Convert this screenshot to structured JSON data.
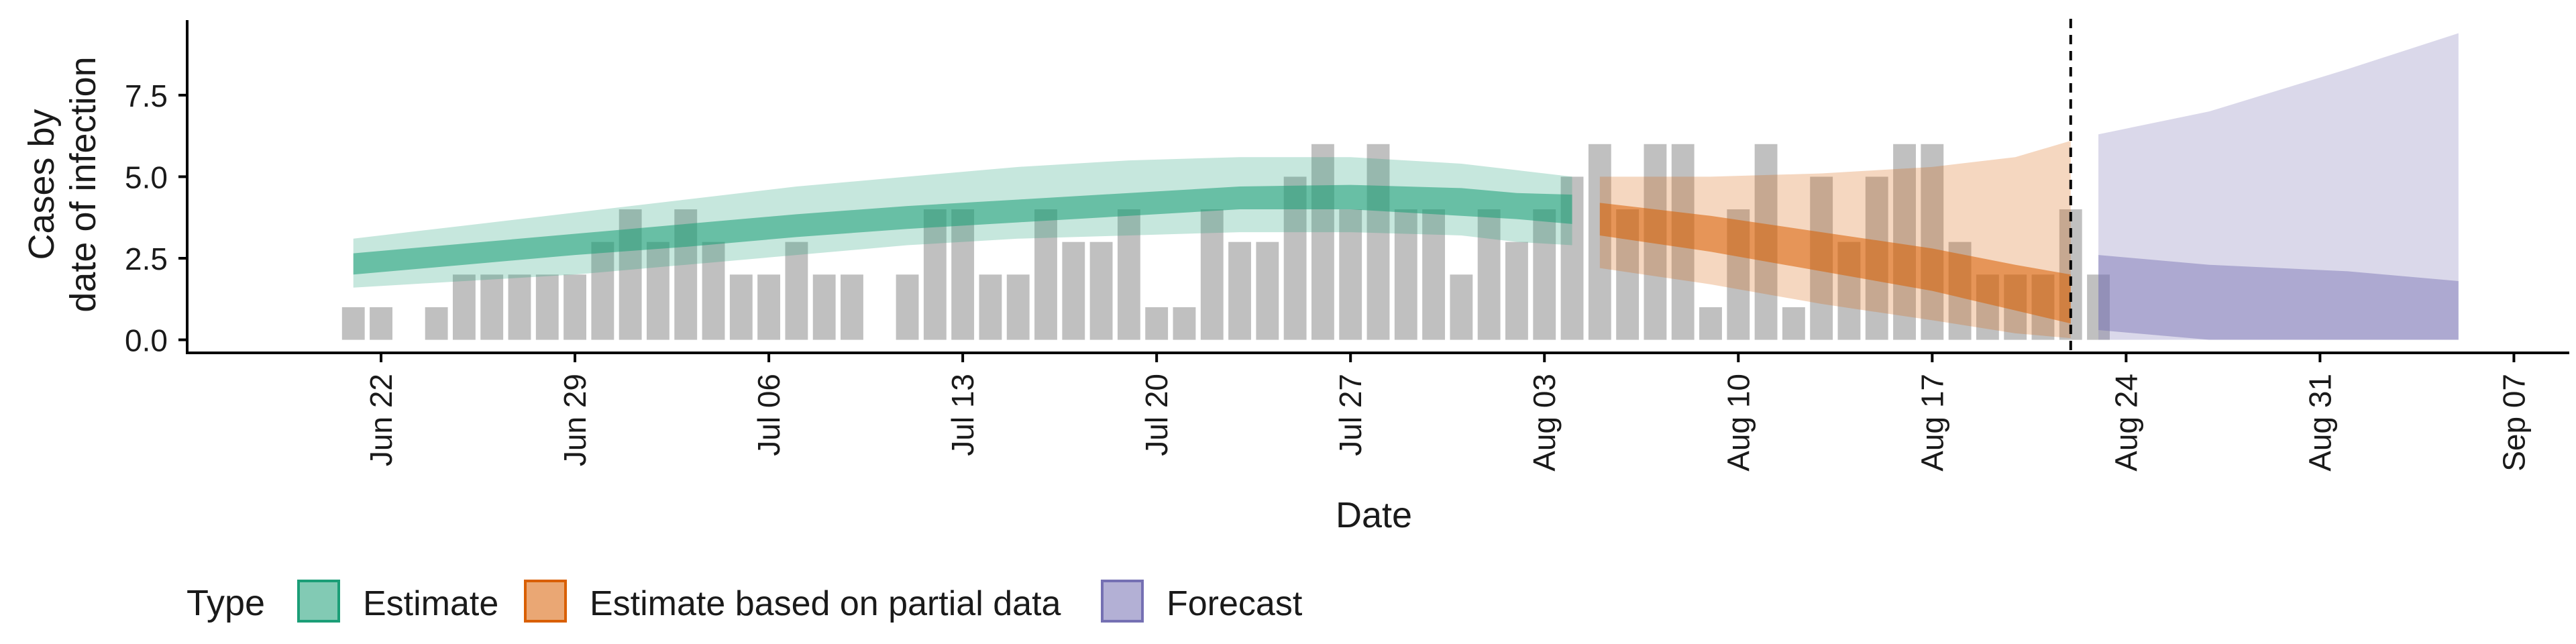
{
  "chart_data": {
    "type": "bar",
    "xlabel": "Date",
    "ylabel": [
      "Cases by",
      "date of infection"
    ],
    "ylim": [
      -0.4,
      9.8
    ],
    "yticks": [
      0.0,
      2.5,
      5.0,
      7.5
    ],
    "ytick_labels": [
      "0.0",
      "2.5",
      "5.0",
      "7.5"
    ],
    "x_range": [
      "2024-06-15",
      "2024-09-09"
    ],
    "xtick_dates": [
      "2024-06-22",
      "2024-06-29",
      "2024-07-06",
      "2024-07-13",
      "2024-07-20",
      "2024-07-27",
      "2024-08-03",
      "2024-08-10",
      "2024-08-17",
      "2024-08-24",
      "2024-08-31",
      "2024-09-07"
    ],
    "xtick_labels": [
      "Jun 22",
      "Jun 29",
      "Jul 06",
      "Jul 13",
      "Jul 20",
      "Jul 27",
      "Aug 03",
      "Aug 10",
      "Aug 17",
      "Aug 24",
      "Aug 31",
      "Sep 07"
    ],
    "vline_date": "2024-08-22",
    "bars": {
      "start_date": "2024-06-21",
      "values": [
        1,
        1,
        0,
        1,
        2,
        2,
        2,
        2,
        2,
        3,
        4,
        3,
        4,
        3,
        2,
        2,
        3,
        2,
        2,
        0,
        2,
        4,
        4,
        2,
        2,
        4,
        3,
        3,
        4,
        1,
        1,
        4,
        3,
        3,
        5,
        6,
        4,
        6,
        4,
        4,
        2,
        4,
        3,
        4,
        5,
        6,
        4,
        6,
        6,
        1,
        4,
        6,
        1,
        5,
        3,
        5,
        6,
        6,
        3,
        2,
        2,
        2,
        4,
        2
      ]
    },
    "series": [
      {
        "name": "Estimate",
        "color": "#1b9e77",
        "start_date": "2024-06-21",
        "end_date": "2024-08-04",
        "dates": [
          "2024-06-21",
          "2024-06-25",
          "2024-06-29",
          "2024-07-03",
          "2024-07-07",
          "2024-07-11",
          "2024-07-15",
          "2024-07-19",
          "2024-07-23",
          "2024-07-27",
          "2024-07-31",
          "2024-08-02",
          "2024-08-04"
        ],
        "median": [
          2.3,
          2.6,
          2.9,
          3.2,
          3.5,
          3.75,
          3.95,
          4.15,
          4.35,
          4.4,
          4.25,
          4.1,
          4.0
        ],
        "lower50": [
          2.0,
          2.3,
          2.6,
          2.85,
          3.15,
          3.4,
          3.6,
          3.8,
          4.0,
          4.0,
          3.8,
          3.7,
          3.55
        ],
        "upper50": [
          2.65,
          2.95,
          3.25,
          3.55,
          3.85,
          4.1,
          4.3,
          4.5,
          4.7,
          4.75,
          4.65,
          4.5,
          4.45
        ],
        "lower90": [
          1.6,
          1.8,
          2.0,
          2.3,
          2.6,
          2.9,
          3.1,
          3.2,
          3.3,
          3.3,
          3.2,
          3.0,
          2.9
        ],
        "upper90": [
          3.1,
          3.5,
          3.9,
          4.3,
          4.7,
          5.0,
          5.3,
          5.5,
          5.6,
          5.6,
          5.4,
          5.2,
          5.0
        ]
      },
      {
        "name": "Estimate based on partial data",
        "color": "#d95f02",
        "dates": [
          "2024-08-05",
          "2024-08-09",
          "2024-08-13",
          "2024-08-17",
          "2024-08-20",
          "2024-08-22"
        ],
        "median": [
          3.7,
          3.2,
          2.6,
          2.0,
          1.4,
          1.0
        ],
        "lower50": [
          3.2,
          2.7,
          2.1,
          1.5,
          0.9,
          0.5
        ],
        "upper50": [
          4.2,
          3.8,
          3.3,
          2.8,
          2.3,
          2.0
        ],
        "lower90": [
          2.2,
          1.7,
          1.1,
          0.6,
          0.2,
          0.05
        ],
        "upper90": [
          5.0,
          5.0,
          5.1,
          5.3,
          5.6,
          6.1
        ]
      },
      {
        "name": "Forecast",
        "color": "#7570b3",
        "dates": [
          "2024-08-23",
          "2024-08-27",
          "2024-09-01",
          "2024-09-05"
        ],
        "lower50": [
          0.3,
          0.0,
          0.0,
          0.0
        ],
        "upper50": [
          2.6,
          2.3,
          2.1,
          1.8
        ],
        "lower90": [
          0.0,
          0.0,
          0.0,
          0.0
        ],
        "upper90": [
          6.3,
          7.0,
          8.3,
          9.4
        ]
      }
    ],
    "legend": {
      "title": "Type",
      "items": [
        "Estimate",
        "Estimate based on partial data",
        "Forecast"
      ],
      "position": "bottom"
    }
  }
}
